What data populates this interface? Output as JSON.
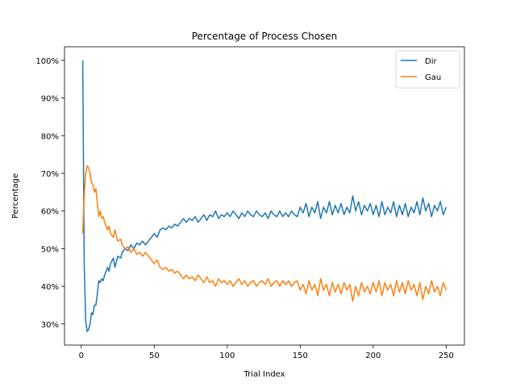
{
  "chart_data": {
    "type": "line",
    "title": "Percentage of Process Chosen",
    "xlabel": "Trial Index",
    "ylabel": "Percentage",
    "xlim": [
      -11.5,
      262.5
    ],
    "ylim": [
      24.4,
      103.6
    ],
    "xticks": [
      0,
      50,
      100,
      150,
      200,
      250
    ],
    "yticks": [
      30,
      40,
      50,
      60,
      70,
      80,
      90,
      100
    ],
    "ytick_format": "{v}%",
    "legend": "top-right",
    "grid": false,
    "series": [
      {
        "name": "Dir",
        "color": "#1f77b4",
        "points": [
          [
            1,
            100
          ],
          [
            2,
            46
          ],
          [
            3,
            31
          ],
          [
            4,
            28
          ],
          [
            5,
            28.5
          ],
          [
            6,
            30
          ],
          [
            7,
            33
          ],
          [
            8,
            32.5
          ],
          [
            9,
            35
          ],
          [
            10,
            35
          ],
          [
            11,
            38
          ],
          [
            12,
            41.5
          ],
          [
            13,
            41
          ],
          [
            14,
            42
          ],
          [
            15,
            41.5
          ],
          [
            16,
            43
          ],
          [
            17,
            44
          ],
          [
            18,
            45
          ],
          [
            19,
            44
          ],
          [
            20,
            46
          ],
          [
            22,
            47.5
          ],
          [
            23,
            45
          ],
          [
            25,
            48
          ],
          [
            27,
            47.5
          ],
          [
            28,
            49
          ],
          [
            30,
            50
          ],
          [
            32,
            49.5
          ],
          [
            34,
            51
          ],
          [
            36,
            50
          ],
          [
            38,
            51.5
          ],
          [
            40,
            51
          ],
          [
            42,
            52
          ],
          [
            44,
            51
          ],
          [
            46,
            52
          ],
          [
            48,
            53
          ],
          [
            50,
            54
          ],
          [
            52,
            53
          ],
          [
            54,
            55
          ],
          [
            56,
            55.5
          ],
          [
            58,
            55
          ],
          [
            60,
            56
          ],
          [
            62,
            55.5
          ],
          [
            64,
            56.5
          ],
          [
            66,
            56
          ],
          [
            68,
            57
          ],
          [
            70,
            58
          ],
          [
            72,
            57
          ],
          [
            74,
            58
          ],
          [
            76,
            57.5
          ],
          [
            78,
            58.5
          ],
          [
            80,
            57
          ],
          [
            82,
            58
          ],
          [
            84,
            59
          ],
          [
            86,
            57.5
          ],
          [
            88,
            59
          ],
          [
            90,
            58.5
          ],
          [
            92,
            60
          ],
          [
            94,
            58
          ],
          [
            96,
            59
          ],
          [
            98,
            58.5
          ],
          [
            100,
            59.5
          ],
          [
            102,
            58.5
          ],
          [
            104,
            60
          ],
          [
            106,
            59
          ],
          [
            108,
            58
          ],
          [
            110,
            59.5
          ],
          [
            112,
            58.5
          ],
          [
            114,
            60
          ],
          [
            116,
            59
          ],
          [
            118,
            58.5
          ],
          [
            120,
            60
          ],
          [
            122,
            59
          ],
          [
            124,
            58.5
          ],
          [
            126,
            59.5
          ],
          [
            128,
            58
          ],
          [
            130,
            60
          ],
          [
            132,
            59
          ],
          [
            134,
            58.5
          ],
          [
            136,
            60
          ],
          [
            138,
            58.5
          ],
          [
            140,
            59.5
          ],
          [
            142,
            58.5
          ],
          [
            144,
            60
          ],
          [
            146,
            59
          ],
          [
            148,
            58.5
          ],
          [
            150,
            61
          ],
          [
            152,
            59.5
          ],
          [
            154,
            62
          ],
          [
            156,
            58.5
          ],
          [
            158,
            61
          ],
          [
            160,
            59.5
          ],
          [
            162,
            62.5
          ],
          [
            164,
            58
          ],
          [
            166,
            61
          ],
          [
            168,
            59.5
          ],
          [
            170,
            62.5
          ],
          [
            172,
            59
          ],
          [
            174,
            61.5
          ],
          [
            176,
            59.5
          ],
          [
            178,
            62
          ],
          [
            180,
            59
          ],
          [
            182,
            61
          ],
          [
            184,
            59.5
          ],
          [
            186,
            64
          ],
          [
            188,
            60
          ],
          [
            190,
            62.5
          ],
          [
            192,
            59
          ],
          [
            194,
            61.5
          ],
          [
            196,
            60
          ],
          [
            198,
            62
          ],
          [
            200,
            59
          ],
          [
            202,
            61.5
          ],
          [
            204,
            58.5
          ],
          [
            206,
            62.5
          ],
          [
            208,
            59
          ],
          [
            210,
            61
          ],
          [
            212,
            59.5
          ],
          [
            214,
            62.5
          ],
          [
            216,
            58.5
          ],
          [
            218,
            61.5
          ],
          [
            220,
            59
          ],
          [
            222,
            62
          ],
          [
            224,
            58.5
          ],
          [
            226,
            61
          ],
          [
            228,
            59.5
          ],
          [
            230,
            62.5
          ],
          [
            232,
            59
          ],
          [
            234,
            63.5
          ],
          [
            236,
            60
          ],
          [
            238,
            62
          ],
          [
            240,
            58.5
          ],
          [
            242,
            61.5
          ],
          [
            244,
            60
          ],
          [
            246,
            62.5
          ],
          [
            248,
            59
          ],
          [
            250,
            61
          ]
        ]
      },
      {
        "name": "Gau",
        "color": "#ff7f0e",
        "points": [
          [
            1,
            54
          ],
          [
            2,
            64
          ],
          [
            3,
            70
          ],
          [
            4,
            72
          ],
          [
            5,
            71.5
          ],
          [
            6,
            70
          ],
          [
            7,
            67.5
          ],
          [
            8,
            67
          ],
          [
            9,
            65
          ],
          [
            10,
            66
          ],
          [
            11,
            62
          ],
          [
            12,
            58.5
          ],
          [
            13,
            60
          ],
          [
            14,
            58
          ],
          [
            15,
            58.5
          ],
          [
            16,
            57
          ],
          [
            17,
            56
          ],
          [
            18,
            55
          ],
          [
            19,
            56
          ],
          [
            20,
            54
          ],
          [
            22,
            53
          ],
          [
            23,
            55
          ],
          [
            25,
            52
          ],
          [
            27,
            52.5
          ],
          [
            28,
            51
          ],
          [
            30,
            50
          ],
          [
            32,
            50.5
          ],
          [
            34,
            49
          ],
          [
            36,
            50
          ],
          [
            38,
            48.5
          ],
          [
            40,
            49
          ],
          [
            42,
            48
          ],
          [
            44,
            49
          ],
          [
            46,
            48
          ],
          [
            48,
            47
          ],
          [
            50,
            46
          ],
          [
            52,
            47
          ],
          [
            54,
            45
          ],
          [
            56,
            44.5
          ],
          [
            58,
            45
          ],
          [
            60,
            44
          ],
          [
            62,
            44.5
          ],
          [
            64,
            43.5
          ],
          [
            66,
            44
          ],
          [
            68,
            43
          ],
          [
            70,
            42
          ],
          [
            72,
            43
          ],
          [
            74,
            42
          ],
          [
            76,
            42.5
          ],
          [
            78,
            41.5
          ],
          [
            80,
            43
          ],
          [
            82,
            42
          ],
          [
            84,
            41
          ],
          [
            86,
            42.5
          ],
          [
            88,
            41
          ],
          [
            90,
            41.5
          ],
          [
            92,
            40
          ],
          [
            94,
            42
          ],
          [
            96,
            41
          ],
          [
            98,
            41.5
          ],
          [
            100,
            40.5
          ],
          [
            102,
            41.5
          ],
          [
            104,
            40
          ],
          [
            106,
            41
          ],
          [
            108,
            42
          ],
          [
            110,
            40.5
          ],
          [
            112,
            41.5
          ],
          [
            114,
            40
          ],
          [
            116,
            41
          ],
          [
            118,
            41.5
          ],
          [
            120,
            40
          ],
          [
            122,
            41
          ],
          [
            124,
            41.5
          ],
          [
            126,
            40.5
          ],
          [
            128,
            42
          ],
          [
            130,
            40
          ],
          [
            132,
            41
          ],
          [
            134,
            41.5
          ],
          [
            136,
            40
          ],
          [
            138,
            41.5
          ],
          [
            140,
            40.5
          ],
          [
            142,
            41.5
          ],
          [
            144,
            40
          ],
          [
            146,
            41
          ],
          [
            148,
            41.5
          ],
          [
            150,
            39
          ],
          [
            152,
            40.5
          ],
          [
            154,
            38
          ],
          [
            156,
            41.5
          ],
          [
            158,
            39
          ],
          [
            160,
            40.5
          ],
          [
            162,
            37.5
          ],
          [
            164,
            42
          ],
          [
            166,
            39
          ],
          [
            168,
            40.5
          ],
          [
            170,
            37.5
          ],
          [
            172,
            41
          ],
          [
            174,
            38.5
          ],
          [
            176,
            40.5
          ],
          [
            178,
            38
          ],
          [
            180,
            41
          ],
          [
            182,
            39
          ],
          [
            184,
            40.5
          ],
          [
            186,
            36
          ],
          [
            188,
            40
          ],
          [
            190,
            37.5
          ],
          [
            192,
            41
          ],
          [
            194,
            38.5
          ],
          [
            196,
            40
          ],
          [
            198,
            38
          ],
          [
            200,
            41
          ],
          [
            202,
            38.5
          ],
          [
            204,
            41.5
          ],
          [
            206,
            37.5
          ],
          [
            208,
            41
          ],
          [
            210,
            39
          ],
          [
            212,
            40.5
          ],
          [
            214,
            37.5
          ],
          [
            216,
            41.5
          ],
          [
            218,
            38.5
          ],
          [
            220,
            41
          ],
          [
            222,
            38
          ],
          [
            224,
            41.5
          ],
          [
            226,
            39
          ],
          [
            228,
            40.5
          ],
          [
            230,
            37.5
          ],
          [
            232,
            41
          ],
          [
            234,
            36.5
          ],
          [
            236,
            40
          ],
          [
            238,
            38
          ],
          [
            240,
            41.5
          ],
          [
            242,
            38.5
          ],
          [
            244,
            40
          ],
          [
            246,
            37.5
          ],
          [
            248,
            41
          ],
          [
            250,
            39
          ]
        ]
      }
    ]
  }
}
